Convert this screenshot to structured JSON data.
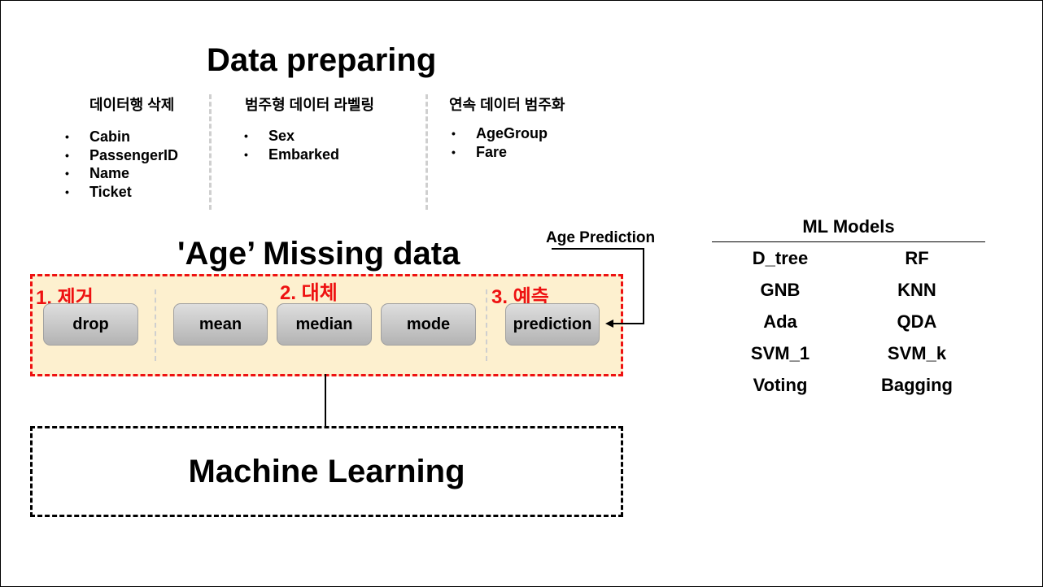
{
  "data_preparing": {
    "title": "Data preparing",
    "columns": [
      {
        "heading": "데이터행 삭제",
        "items": [
          "Cabin",
          "PassengerID",
          "Name",
          "Ticket"
        ]
      },
      {
        "heading": "범주형 데이터 라벨링",
        "items": [
          "Sex",
          "Embarked"
        ]
      },
      {
        "heading": "연속 데이터 범주화",
        "items": [
          "AgeGroup",
          "Fare"
        ]
      }
    ]
  },
  "age_missing": {
    "title": "'Age’ Missing data",
    "groups": [
      {
        "label": "1. 제거",
        "buttons": [
          "drop"
        ]
      },
      {
        "label": "2. 대체",
        "buttons": [
          "mean",
          "median",
          "mode"
        ]
      },
      {
        "label": "3. 예측",
        "buttons": [
          "prediction"
        ]
      }
    ],
    "age_prediction_label": "Age Prediction"
  },
  "machine_learning": {
    "label": "Machine Learning"
  },
  "ml_models": {
    "title": "ML Models",
    "rows": [
      [
        "D_tree",
        "RF"
      ],
      [
        "GNB",
        "KNN"
      ],
      [
        "Ada",
        "QDA"
      ],
      [
        "SVM_1",
        "SVM_k"
      ],
      [
        "Voting",
        "Bagging"
      ]
    ]
  },
  "colors": {
    "accent_red": "#ee1111",
    "box_fill": "#fdf0cf",
    "divider_gray": "#cfcfcf"
  }
}
